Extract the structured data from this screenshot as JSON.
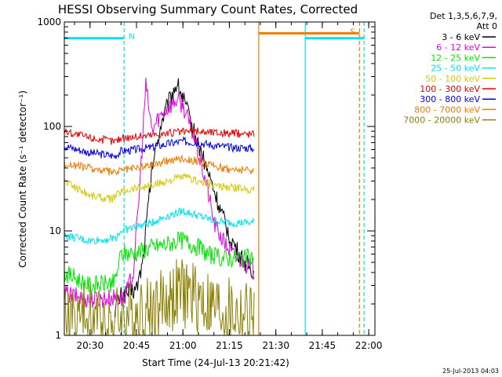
{
  "chart_data": {
    "type": "line",
    "title": "HESSI Observing Summary Count Rates, Corrected",
    "xlabel": "Start Time (24-Jul-13 20:21:42)",
    "ylabel": "Corrected Count Rate (s⁻¹ detector⁻¹)",
    "y_scale": "log",
    "ylim": [
      1,
      1000
    ],
    "xlim": [
      "20:21:42",
      "22:02:00"
    ],
    "x_ticks": [
      "20:30",
      "20:45",
      "21:00",
      "21:15",
      "21:30",
      "21:45",
      "22:00"
    ],
    "y_ticks": [
      "1",
      "10",
      "100",
      "1000"
    ],
    "legend_header": [
      "Det 1,3,5,6,7,9,",
      "Att 0"
    ],
    "legend_position": "right",
    "timestamp": "25-Jul-2013 04:03",
    "flags": [
      {
        "label": "N",
        "color": "#00e5ee",
        "start": "20:21:42",
        "end": "20:41:00",
        "level": 700
      },
      {
        "label": "S",
        "color": "#f07a00",
        "start": "21:24:30",
        "end": "21:57:00",
        "level": 780
      },
      {
        "label": "",
        "color": "#00e5ee",
        "start": "21:39:30",
        "end": "21:58:30",
        "level": 700
      }
    ],
    "vlines": [
      {
        "time": "20:41:00",
        "color": "#00e5ee",
        "dashed": true
      },
      {
        "time": "21:24:30",
        "color": "#f07a00",
        "dashed": false
      },
      {
        "time": "21:39:30",
        "color": "#00e5ee",
        "dashed": false
      },
      {
        "time": "21:57:00",
        "color": "#f07a00",
        "dashed": true
      },
      {
        "time": "21:58:30",
        "color": "#00e5ee",
        "dashed": true
      }
    ],
    "series": [
      {
        "name": "3 - 6 keV",
        "color": "#000000",
        "x": [
          "20:38:00",
          "20:40:00",
          "20:43:00",
          "20:45:00",
          "20:47:00",
          "20:50:00",
          "20:53:00",
          "20:56:00",
          "20:58:00",
          "21:00:00",
          "21:03:00",
          "21:06:00",
          "21:09:00",
          "21:12:00",
          "21:15:00",
          "21:18:00",
          "21:20:00",
          "21:23:00"
        ],
        "y": [
          1.8,
          2.4,
          2.6,
          2.8,
          5,
          40,
          110,
          190,
          260,
          190,
          100,
          55,
          30,
          16,
          9,
          6,
          5,
          4
        ]
      },
      {
        "name": "6 - 12 keV",
        "color": "#e600e6",
        "x": [
          "20:21:42",
          "20:30:00",
          "20:38:00",
          "20:41:00",
          "20:44:00",
          "20:46:00",
          "20:48:00",
          "20:50:00",
          "20:52:00",
          "20:55:00",
          "20:58:00",
          "21:00:00",
          "21:03:00",
          "21:05:00",
          "21:08:00",
          "21:10:00",
          "21:13:00",
          "21:16:00",
          "21:20:00",
          "21:23:00"
        ],
        "y": [
          2.5,
          2.2,
          2.3,
          2.2,
          4,
          25,
          250,
          90,
          120,
          150,
          180,
          160,
          90,
          55,
          25,
          12,
          8,
          6,
          5,
          4
        ]
      },
      {
        "name": "12 - 25 keV",
        "color": "#00e600",
        "x": [
          "20:21:42",
          "20:30:00",
          "20:38:00",
          "20:40:00",
          "20:45:00",
          "20:50:00",
          "20:55:00",
          "21:00:00",
          "21:05:00",
          "21:08:00",
          "21:12:00",
          "21:18:00",
          "21:23:00"
        ],
        "y": [
          4,
          3,
          3.2,
          6,
          6.2,
          7,
          7.5,
          8.2,
          7,
          6,
          5.5,
          5.5,
          5.5
        ]
      },
      {
        "name": "25 - 50 keV",
        "color": "#00e5ee",
        "x": [
          "20:21:42",
          "20:30:00",
          "20:38:00",
          "20:40:00",
          "20:45:00",
          "20:50:00",
          "20:55:00",
          "21:00:00",
          "21:05:00",
          "21:10:00",
          "21:15:00",
          "21:23:00"
        ],
        "y": [
          9,
          8,
          8.5,
          10,
          11,
          12,
          14,
          15.5,
          14,
          12.5,
          12,
          12
        ]
      },
      {
        "name": "50 - 100 keV",
        "color": "#d6c800",
        "x": [
          "20:21:42",
          "20:30:00",
          "20:37:00",
          "20:40:00",
          "20:45:00",
          "20:50:00",
          "20:55:00",
          "21:00:00",
          "21:05:00",
          "21:10:00",
          "21:15:00",
          "21:23:00"
        ],
        "y": [
          30,
          22,
          20,
          24,
          26,
          27,
          30,
          33,
          30,
          27,
          26,
          25
        ]
      },
      {
        "name": "100 - 300 keV",
        "color": "#e60000",
        "x": [
          "20:21:42",
          "20:30:00",
          "20:38:00",
          "20:40:00",
          "20:45:00",
          "20:50:00",
          "20:55:00",
          "21:00:00",
          "21:05:00",
          "21:10:00",
          "21:15:00",
          "21:23:00"
        ],
        "y": [
          90,
          78,
          72,
          78,
          80,
          83,
          86,
          89,
          90,
          88,
          86,
          85
        ]
      },
      {
        "name": "300 - 800 keV",
        "color": "#0000e6",
        "x": [
          "20:21:42",
          "20:30:00",
          "20:38:00",
          "20:40:00",
          "20:45:00",
          "20:50:00",
          "20:55:00",
          "21:00:00",
          "21:05:00",
          "21:10:00",
          "21:15:00",
          "21:23:00"
        ],
        "y": [
          65,
          56,
          52,
          58,
          60,
          63,
          68,
          72,
          70,
          66,
          63,
          62
        ]
      },
      {
        "name": "800 - 7000 keV",
        "color": "#f07a00",
        "x": [
          "20:21:42",
          "20:30:00",
          "20:38:00",
          "20:40:00",
          "20:45:00",
          "20:50:00",
          "20:55:00",
          "21:00:00",
          "21:05:00",
          "21:10:00",
          "21:15:00",
          "21:23:00"
        ],
        "y": [
          44,
          40,
          36,
          38,
          40,
          43,
          47,
          50,
          46,
          42,
          39,
          38
        ]
      },
      {
        "name": "7000 - 20000 keV",
        "color": "#8b8000",
        "x": [
          "20:21:42",
          "20:30:00",
          "20:38:00",
          "20:43:00",
          "20:50:00",
          "20:55:00",
          "21:00:00",
          "21:05:00",
          "21:10:00",
          "21:15:00",
          "21:23:00"
        ],
        "y": [
          1.5,
          1.5,
          1.4,
          1.6,
          1.8,
          2.2,
          2.6,
          2.3,
          1.8,
          1.6,
          1.5
        ]
      }
    ]
  }
}
